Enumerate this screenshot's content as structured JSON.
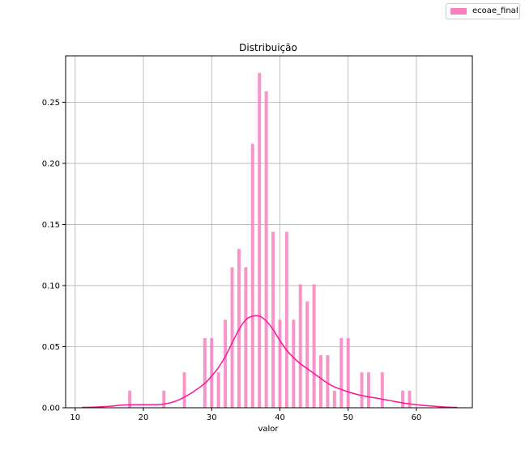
{
  "chart_data": {
    "type": "bar",
    "title": "Distribuição",
    "xlabel": "valor",
    "ylabel": "",
    "xlim": [
      8.6,
      68.2
    ],
    "ylim": [
      0,
      0.288
    ],
    "xticks": [
      10,
      20,
      30,
      40,
      50,
      60
    ],
    "yticks": [
      0.0,
      0.05,
      0.1,
      0.15,
      0.2,
      0.25
    ],
    "ytick_labels": [
      "0.00",
      "0.05",
      "0.10",
      "0.15",
      "0.20",
      "0.25"
    ],
    "grid": true,
    "legend_position": "top-right",
    "series": [
      {
        "name": "ecoae_final",
        "kind": "histogram",
        "color": "#f781bf",
        "bin_width": 0.47,
        "x": [
          18,
          23,
          26,
          29,
          30,
          31,
          32,
          33,
          34,
          35,
          36,
          37,
          38,
          39,
          40,
          41,
          42,
          43,
          44,
          45,
          46,
          47,
          48,
          49,
          50,
          52,
          53,
          55,
          58,
          59
        ],
        "values": [
          0.014,
          0.014,
          0.029,
          0.057,
          0.057,
          0.029,
          0.072,
          0.115,
          0.13,
          0.115,
          0.216,
          0.274,
          0.259,
          0.144,
          0.072,
          0.144,
          0.072,
          0.101,
          0.087,
          0.101,
          0.043,
          0.043,
          0.014,
          0.057,
          0.057,
          0.029,
          0.029,
          0.029,
          0.014,
          0.014
        ]
      },
      {
        "name": "kde",
        "kind": "line",
        "color": "#ff1493",
        "x": [
          11,
          13,
          15,
          17,
          19,
          21,
          23,
          25,
          27,
          29,
          30,
          31,
          32,
          33,
          34,
          35,
          36,
          37,
          38,
          39,
          40,
          41,
          42,
          43,
          44,
          45,
          46,
          47,
          48,
          49,
          50,
          52,
          54,
          56,
          58,
          60,
          62,
          64,
          66
        ],
        "values": [
          0.0003,
          0.0006,
          0.0012,
          0.0022,
          0.0025,
          0.0025,
          0.003,
          0.006,
          0.012,
          0.02,
          0.026,
          0.033,
          0.042,
          0.053,
          0.064,
          0.072,
          0.075,
          0.075,
          0.071,
          0.064,
          0.055,
          0.047,
          0.041,
          0.036,
          0.032,
          0.028,
          0.024,
          0.02,
          0.017,
          0.015,
          0.013,
          0.01,
          0.008,
          0.006,
          0.004,
          0.0025,
          0.0015,
          0.0007,
          0.0003
        ]
      }
    ]
  }
}
